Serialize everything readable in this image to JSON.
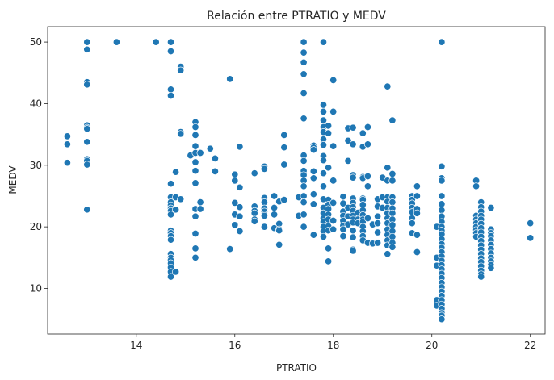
{
  "chart_data": {
    "type": "scatter",
    "title": "Relación entre PTRATIO y MEDV",
    "xlabel": "PTRATIO",
    "ylabel": "MEDV",
    "xlim": [
      12.2,
      22.3
    ],
    "ylim": [
      2.6,
      52.5
    ],
    "xticks": [
      14,
      16,
      18,
      20,
      22
    ],
    "yticks": [
      10,
      20,
      30,
      40,
      50
    ],
    "grid": false,
    "point_color": "#1f77b4",
    "point_edge_color": "#ffffff",
    "points": [
      [
        12.6,
        34.7
      ],
      [
        12.6,
        33.4
      ],
      [
        12.6,
        30.4
      ],
      [
        13.0,
        50.0
      ],
      [
        13.0,
        48.8
      ],
      [
        13.0,
        43.5
      ],
      [
        13.0,
        43.1
      ],
      [
        13.0,
        36.5
      ],
      [
        13.0,
        36.1
      ],
      [
        13.0,
        35.9
      ],
      [
        13.0,
        33.8
      ],
      [
        13.0,
        31.0
      ],
      [
        13.0,
        30.7
      ],
      [
        13.0,
        30.1
      ],
      [
        13.0,
        22.8
      ],
      [
        13.6,
        50.0
      ],
      [
        14.4,
        50.0
      ],
      [
        14.7,
        50.0
      ],
      [
        14.7,
        48.5
      ],
      [
        14.7,
        42.3
      ],
      [
        14.7,
        41.3
      ],
      [
        14.7,
        27.0
      ],
      [
        14.7,
        24.8
      ],
      [
        14.7,
        24.0
      ],
      [
        14.7,
        23.5
      ],
      [
        14.7,
        23.0
      ],
      [
        14.7,
        22.6
      ],
      [
        14.7,
        22.0
      ],
      [
        14.7,
        19.4
      ],
      [
        14.7,
        19.0
      ],
      [
        14.7,
        18.5
      ],
      [
        14.7,
        17.9
      ],
      [
        14.7,
        15.6
      ],
      [
        14.7,
        15.0
      ],
      [
        14.7,
        14.6
      ],
      [
        14.7,
        14.1
      ],
      [
        14.7,
        13.4
      ],
      [
        14.7,
        12.7
      ],
      [
        14.7,
        11.9
      ],
      [
        14.8,
        24.8
      ],
      [
        14.8,
        22.8
      ],
      [
        14.8,
        28.9
      ],
      [
        14.8,
        12.7
      ],
      [
        14.9,
        46.0
      ],
      [
        14.9,
        45.4
      ],
      [
        14.9,
        35.4
      ],
      [
        14.9,
        35.1
      ],
      [
        14.9,
        24.5
      ],
      [
        15.1,
        31.6
      ],
      [
        15.2,
        37.0
      ],
      [
        15.2,
        36.2
      ],
      [
        15.2,
        34.9
      ],
      [
        15.2,
        33.1
      ],
      [
        15.2,
        32.0
      ],
      [
        15.2,
        30.5
      ],
      [
        15.2,
        29.1
      ],
      [
        15.2,
        27.1
      ],
      [
        15.2,
        22.9
      ],
      [
        15.2,
        21.7
      ],
      [
        15.2,
        18.9
      ],
      [
        15.2,
        16.5
      ],
      [
        15.2,
        15.0
      ],
      [
        15.3,
        32.0
      ],
      [
        15.3,
        24.0
      ],
      [
        15.3,
        22.9
      ],
      [
        15.5,
        32.7
      ],
      [
        15.6,
        31.1
      ],
      [
        15.6,
        29.0
      ],
      [
        15.9,
        44.0
      ],
      [
        15.9,
        16.4
      ],
      [
        16.0,
        28.5
      ],
      [
        16.0,
        27.5
      ],
      [
        16.0,
        23.9
      ],
      [
        16.0,
        22.0
      ],
      [
        16.0,
        20.3
      ],
      [
        16.1,
        33.0
      ],
      [
        16.1,
        26.4
      ],
      [
        16.1,
        23.2
      ],
      [
        16.1,
        21.7
      ],
      [
        16.1,
        19.3
      ],
      [
        16.4,
        28.7
      ],
      [
        16.4,
        23.3
      ],
      [
        16.4,
        22.6
      ],
      [
        16.4,
        22.2
      ],
      [
        16.4,
        21.2
      ],
      [
        16.4,
        20.9
      ],
      [
        16.6,
        29.8
      ],
      [
        16.6,
        29.4
      ],
      [
        16.6,
        24.7
      ],
      [
        16.6,
        24.0
      ],
      [
        16.6,
        23.0
      ],
      [
        16.6,
        22.5
      ],
      [
        16.6,
        22.0
      ],
      [
        16.6,
        21.8
      ],
      [
        16.6,
        20.0
      ],
      [
        16.8,
        25.0
      ],
      [
        16.8,
        23.1
      ],
      [
        16.8,
        22.0
      ],
      [
        16.8,
        19.8
      ],
      [
        16.9,
        24.1
      ],
      [
        16.9,
        20.5
      ],
      [
        16.9,
        19.6
      ],
      [
        16.9,
        19.4
      ],
      [
        16.9,
        17.1
      ],
      [
        17.0,
        34.9
      ],
      [
        17.0,
        32.9
      ],
      [
        17.0,
        30.1
      ],
      [
        17.0,
        24.4
      ],
      [
        17.3,
        24.8
      ],
      [
        17.3,
        21.8
      ],
      [
        17.4,
        50.0
      ],
      [
        17.4,
        48.3
      ],
      [
        17.4,
        46.7
      ],
      [
        17.4,
        44.8
      ],
      [
        17.4,
        41.7
      ],
      [
        17.4,
        37.6
      ],
      [
        17.4,
        31.6
      ],
      [
        17.4,
        30.7
      ],
      [
        17.4,
        29.1
      ],
      [
        17.4,
        28.4
      ],
      [
        17.4,
        27.5
      ],
      [
        17.4,
        26.6
      ],
      [
        17.4,
        25.0
      ],
      [
        17.4,
        24.0
      ],
      [
        17.4,
        22.0
      ],
      [
        17.4,
        20.0
      ],
      [
        17.6,
        33.2
      ],
      [
        17.6,
        32.9
      ],
      [
        17.6,
        32.5
      ],
      [
        17.6,
        29.0
      ],
      [
        17.6,
        27.9
      ],
      [
        17.6,
        25.3
      ],
      [
        17.6,
        23.7
      ],
      [
        17.6,
        18.7
      ],
      [
        17.8,
        50.0
      ],
      [
        17.8,
        39.8
      ],
      [
        17.8,
        38.7
      ],
      [
        17.8,
        37.3
      ],
      [
        17.8,
        36.2
      ],
      [
        17.8,
        35.4
      ],
      [
        17.8,
        34.2
      ],
      [
        17.8,
        33.3
      ],
      [
        17.8,
        31.5
      ],
      [
        17.8,
        30.8
      ],
      [
        17.8,
        28.7
      ],
      [
        17.8,
        26.6
      ],
      [
        17.8,
        24.5
      ],
      [
        17.8,
        23.1
      ],
      [
        17.8,
        22.2
      ],
      [
        17.8,
        21.4
      ],
      [
        17.8,
        20.8
      ],
      [
        17.8,
        20.0
      ],
      [
        17.8,
        19.3
      ],
      [
        17.8,
        18.4
      ],
      [
        17.9,
        36.4
      ],
      [
        17.9,
        35.2
      ],
      [
        17.9,
        29.6
      ],
      [
        17.9,
        24.4
      ],
      [
        17.9,
        23.6
      ],
      [
        17.9,
        22.9
      ],
      [
        17.9,
        22.0
      ],
      [
        17.9,
        21.2
      ],
      [
        17.9,
        20.1
      ],
      [
        17.9,
        19.4
      ],
      [
        17.9,
        16.5
      ],
      [
        17.9,
        14.4
      ],
      [
        18.0,
        43.8
      ],
      [
        18.0,
        38.7
      ],
      [
        18.0,
        33.1
      ],
      [
        18.0,
        27.5
      ],
      [
        18.0,
        23.9
      ],
      [
        18.0,
        21.0
      ],
      [
        18.0,
        19.6
      ],
      [
        18.2,
        24.9
      ],
      [
        18.2,
        23.8
      ],
      [
        18.2,
        22.5
      ],
      [
        18.2,
        21.8
      ],
      [
        18.2,
        21.0
      ],
      [
        18.2,
        20.2
      ],
      [
        18.2,
        19.6
      ],
      [
        18.2,
        18.5
      ],
      [
        18.3,
        36.0
      ],
      [
        18.3,
        34.0
      ],
      [
        18.3,
        30.7
      ],
      [
        18.3,
        23.1
      ],
      [
        18.3,
        21.7
      ],
      [
        18.3,
        20.4
      ],
      [
        18.4,
        36.1
      ],
      [
        18.4,
        33.4
      ],
      [
        18.4,
        28.4
      ],
      [
        18.4,
        28.0
      ],
      [
        18.4,
        24.6
      ],
      [
        18.4,
        23.9
      ],
      [
        18.4,
        23.2
      ],
      [
        18.4,
        22.6
      ],
      [
        18.4,
        21.8
      ],
      [
        18.4,
        21.2
      ],
      [
        18.4,
        20.7
      ],
      [
        18.4,
        19.4
      ],
      [
        18.4,
        18.3
      ],
      [
        18.4,
        16.3
      ],
      [
        18.4,
        16.1
      ],
      [
        18.5,
        22.3
      ],
      [
        18.5,
        21.2
      ],
      [
        18.5,
        20.6
      ],
      [
        18.6,
        35.2
      ],
      [
        18.6,
        33.0
      ],
      [
        18.6,
        28.1
      ],
      [
        18.6,
        27.9
      ],
      [
        18.6,
        24.6
      ],
      [
        18.6,
        24.4
      ],
      [
        18.6,
        23.6
      ],
      [
        18.6,
        22.7
      ],
      [
        18.6,
        21.9
      ],
      [
        18.6,
        21.2
      ],
      [
        18.6,
        20.8
      ],
      [
        18.6,
        20.0
      ],
      [
        18.6,
        19.3
      ],
      [
        18.6,
        18.5
      ],
      [
        18.6,
        17.8
      ],
      [
        18.7,
        36.2
      ],
      [
        18.7,
        33.4
      ],
      [
        18.7,
        28.2
      ],
      [
        18.7,
        26.6
      ],
      [
        18.7,
        21.4
      ],
      [
        18.7,
        17.4
      ],
      [
        18.8,
        20.4
      ],
      [
        18.8,
        17.3
      ],
      [
        18.9,
        24.5
      ],
      [
        18.9,
        23.3
      ],
      [
        18.9,
        21.7
      ],
      [
        18.9,
        20.6
      ],
      [
        18.9,
        19.1
      ],
      [
        18.9,
        17.4
      ],
      [
        19.0,
        28.0
      ],
      [
        19.0,
        24.8
      ],
      [
        19.0,
        23.1
      ],
      [
        19.1,
        42.8
      ],
      [
        19.1,
        29.6
      ],
      [
        19.1,
        27.5
      ],
      [
        19.1,
        24.8
      ],
      [
        19.1,
        24.1
      ],
      [
        19.1,
        23.1
      ],
      [
        19.1,
        22.2
      ],
      [
        19.1,
        21.4
      ],
      [
        19.1,
        20.6
      ],
      [
        19.1,
        19.6
      ],
      [
        19.1,
        18.7
      ],
      [
        19.1,
        17.8
      ],
      [
        19.1,
        17.0
      ],
      [
        19.1,
        15.6
      ],
      [
        19.2,
        37.3
      ],
      [
        19.2,
        28.6
      ],
      [
        19.2,
        27.5
      ],
      [
        19.2,
        24.8
      ],
      [
        19.2,
        24.0
      ],
      [
        19.2,
        23.0
      ],
      [
        19.2,
        22.2
      ],
      [
        19.2,
        21.2
      ],
      [
        19.2,
        20.3
      ],
      [
        19.2,
        19.3
      ],
      [
        19.2,
        18.4
      ],
      [
        19.2,
        17.4
      ],
      [
        19.2,
        16.7
      ],
      [
        19.6,
        25.0
      ],
      [
        19.6,
        24.4
      ],
      [
        19.6,
        23.8
      ],
      [
        19.6,
        23.1
      ],
      [
        19.6,
        22.4
      ],
      [
        19.6,
        21.4
      ],
      [
        19.6,
        20.6
      ],
      [
        19.6,
        19.0
      ],
      [
        19.7,
        26.6
      ],
      [
        19.7,
        25.0
      ],
      [
        19.7,
        22.9
      ],
      [
        19.7,
        22.2
      ],
      [
        19.7,
        18.7
      ],
      [
        19.7,
        15.9
      ],
      [
        20.1,
        20.0
      ],
      [
        20.1,
        15.0
      ],
      [
        20.1,
        13.7
      ],
      [
        20.1,
        8.1
      ],
      [
        20.1,
        7.2
      ],
      [
        20.2,
        50.0
      ],
      [
        20.2,
        29.8
      ],
      [
        20.2,
        27.9
      ],
      [
        20.2,
        27.5
      ],
      [
        20.2,
        25.0
      ],
      [
        20.2,
        23.7
      ],
      [
        20.2,
        22.7
      ],
      [
        20.2,
        21.7
      ],
      [
        20.2,
        20.8
      ],
      [
        20.2,
        20.0
      ],
      [
        20.2,
        19.4
      ],
      [
        20.2,
        18.8
      ],
      [
        20.2,
        18.0
      ],
      [
        20.2,
        17.2
      ],
      [
        20.2,
        16.6
      ],
      [
        20.2,
        15.9
      ],
      [
        20.2,
        15.2
      ],
      [
        20.2,
        14.5
      ],
      [
        20.2,
        13.8
      ],
      [
        20.2,
        13.1
      ],
      [
        20.2,
        12.4
      ],
      [
        20.2,
        11.7
      ],
      [
        20.2,
        10.9
      ],
      [
        20.2,
        10.2
      ],
      [
        20.2,
        9.5
      ],
      [
        20.2,
        8.8
      ],
      [
        20.2,
        8.1
      ],
      [
        20.2,
        7.4
      ],
      [
        20.2,
        6.7
      ],
      [
        20.2,
        6.0
      ],
      [
        20.2,
        5.6
      ],
      [
        20.2,
        5.0
      ],
      [
        20.9,
        27.5
      ],
      [
        20.9,
        26.6
      ],
      [
        20.9,
        21.8
      ],
      [
        20.9,
        21.2
      ],
      [
        20.9,
        20.6
      ],
      [
        20.9,
        20.0
      ],
      [
        20.9,
        19.5
      ],
      [
        20.9,
        19.0
      ],
      [
        20.9,
        18.4
      ],
      [
        21.0,
        24.0
      ],
      [
        21.0,
        23.2
      ],
      [
        21.0,
        22.5
      ],
      [
        21.0,
        21.8
      ],
      [
        21.0,
        21.2
      ],
      [
        21.0,
        20.5
      ],
      [
        21.0,
        19.8
      ],
      [
        21.0,
        19.1
      ],
      [
        21.0,
        18.4
      ],
      [
        21.0,
        17.7
      ],
      [
        21.0,
        17.0
      ],
      [
        21.0,
        16.3
      ],
      [
        21.0,
        15.6
      ],
      [
        21.0,
        14.9
      ],
      [
        21.0,
        14.3
      ],
      [
        21.0,
        13.6
      ],
      [
        21.0,
        12.9
      ],
      [
        21.0,
        12.3
      ],
      [
        21.0,
        11.9
      ],
      [
        21.2,
        23.1
      ],
      [
        21.2,
        19.6
      ],
      [
        21.2,
        19.0
      ],
      [
        21.2,
        18.5
      ],
      [
        21.2,
        17.8
      ],
      [
        21.2,
        17.1
      ],
      [
        21.2,
        16.4
      ],
      [
        21.2,
        15.7
      ],
      [
        21.2,
        15.0
      ],
      [
        21.2,
        14.4
      ],
      [
        21.2,
        13.8
      ],
      [
        21.2,
        13.3
      ],
      [
        22.0,
        20.6
      ],
      [
        22.0,
        18.2
      ]
    ]
  }
}
